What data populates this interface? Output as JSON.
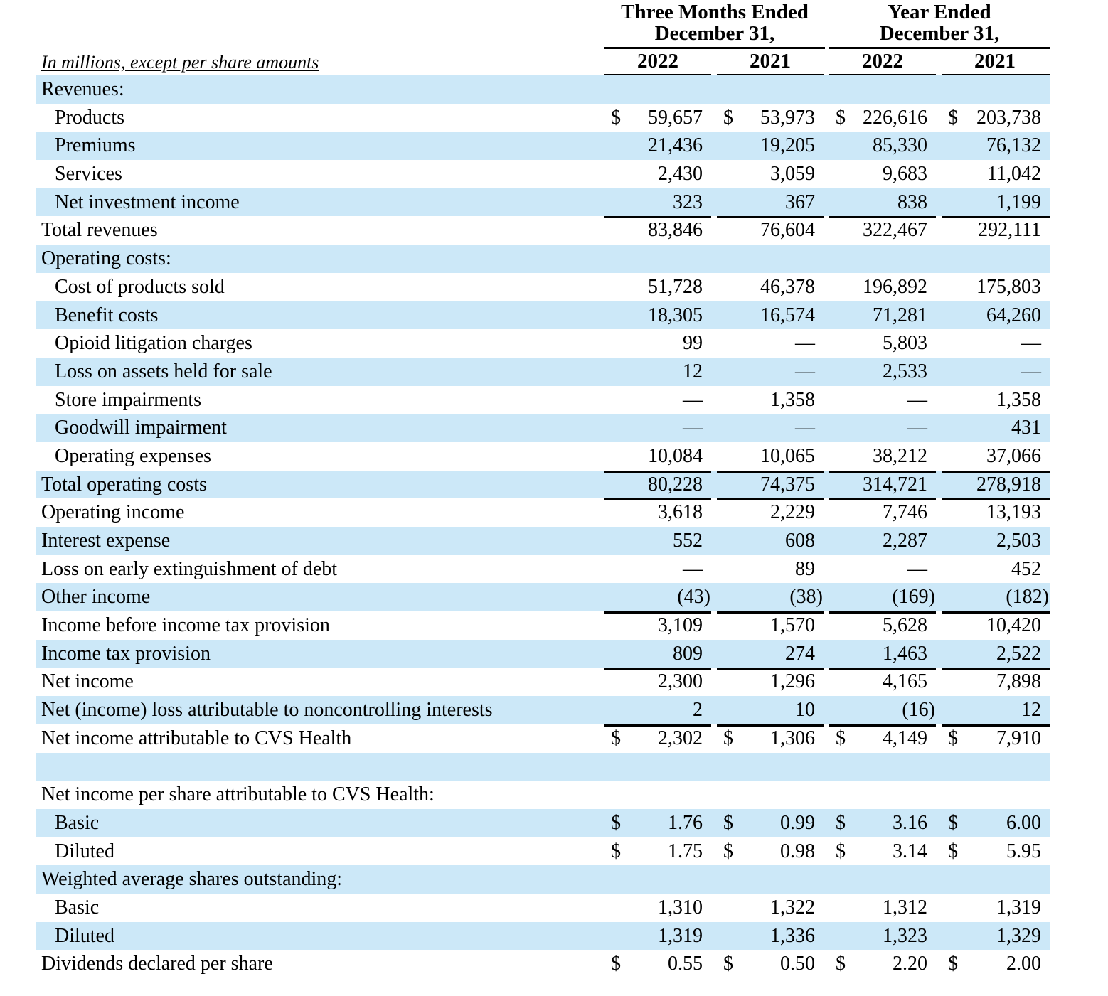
{
  "header": {
    "caption": "In millions, except per share amounts",
    "groups": [
      {
        "line1": "Three Months Ended",
        "line2": "December 31,"
      },
      {
        "line1": "Year Ended",
        "line2": "December 31,"
      }
    ],
    "years": [
      "2022",
      "2021",
      "2022",
      "2021"
    ]
  },
  "rows": [
    {
      "label": "Revenues:",
      "indent": 0,
      "shade": true,
      "cells": [
        "",
        "",
        "",
        ""
      ]
    },
    {
      "label": "Products",
      "indent": 1,
      "shade": false,
      "dollar": true,
      "cells": [
        "59,657",
        "53,973",
        "226,616",
        "203,738"
      ]
    },
    {
      "label": "Premiums",
      "indent": 1,
      "shade": true,
      "cells": [
        "21,436",
        "19,205",
        "85,330",
        "76,132"
      ]
    },
    {
      "label": "Services",
      "indent": 1,
      "shade": false,
      "cells": [
        "2,430",
        "3,059",
        "9,683",
        "11,042"
      ]
    },
    {
      "label": "Net investment income",
      "indent": 1,
      "shade": true,
      "cells": [
        "323",
        "367",
        "838",
        "1,199"
      ]
    },
    {
      "label": "Total revenues",
      "indent": 0,
      "shade": false,
      "topBorder": true,
      "cells": [
        "83,846",
        "76,604",
        "322,467",
        "292,111"
      ]
    },
    {
      "label": "Operating costs:",
      "indent": 0,
      "shade": true,
      "cells": [
        "",
        "",
        "",
        ""
      ]
    },
    {
      "label": "Cost of products sold",
      "indent": 1,
      "shade": false,
      "cells": [
        "51,728",
        "46,378",
        "196,892",
        "175,803"
      ]
    },
    {
      "label": "Benefit costs",
      "indent": 1,
      "shade": true,
      "cells": [
        "18,305",
        "16,574",
        "71,281",
        "64,260"
      ]
    },
    {
      "label": "Opioid litigation charges",
      "indent": 1,
      "shade": false,
      "cells": [
        "99",
        "—",
        "5,803",
        "—"
      ]
    },
    {
      "label": "Loss on assets held for sale",
      "indent": 1,
      "shade": true,
      "cells": [
        "12",
        "—",
        "2,533",
        "—"
      ]
    },
    {
      "label": "Store impairments",
      "indent": 1,
      "shade": false,
      "cells": [
        "—",
        "1,358",
        "—",
        "1,358"
      ]
    },
    {
      "label": "Goodwill impairment",
      "indent": 1,
      "shade": true,
      "cells": [
        "—",
        "—",
        "—",
        "431"
      ]
    },
    {
      "label": "Operating expenses",
      "indent": 1,
      "shade": false,
      "cells": [
        "10,084",
        "10,065",
        "38,212",
        "37,066"
      ]
    },
    {
      "label": "Total operating costs",
      "indent": 0,
      "shade": true,
      "topBorder": true,
      "cells": [
        "80,228",
        "74,375",
        "314,721",
        "278,918"
      ]
    },
    {
      "label": "Operating income",
      "indent": 0,
      "shade": false,
      "topBorder": true,
      "cells": [
        "3,618",
        "2,229",
        "7,746",
        "13,193"
      ]
    },
    {
      "label": "Interest expense",
      "indent": 0,
      "shade": true,
      "cells": [
        "552",
        "608",
        "2,287",
        "2,503"
      ]
    },
    {
      "label": "Loss on early extinguishment of debt",
      "indent": 0,
      "shade": false,
      "cells": [
        "—",
        "89",
        "—",
        "452"
      ]
    },
    {
      "label": "Other income",
      "indent": 0,
      "shade": true,
      "cells": [
        "(43)",
        "(38)",
        "(169)",
        "(182)"
      ]
    },
    {
      "label": "Income before income tax provision",
      "indent": 0,
      "shade": false,
      "topBorder": true,
      "cells": [
        "3,109",
        "1,570",
        "5,628",
        "10,420"
      ]
    },
    {
      "label": "Income tax provision",
      "indent": 0,
      "shade": true,
      "cells": [
        "809",
        "274",
        "1,463",
        "2,522"
      ]
    },
    {
      "label": "Net income",
      "indent": 0,
      "shade": false,
      "topBorder": true,
      "cells": [
        "2,300",
        "1,296",
        "4,165",
        "7,898"
      ]
    },
    {
      "label": "Net (income) loss attributable to noncontrolling interests",
      "indent": 0,
      "shade": true,
      "cells": [
        "2",
        "10",
        "(16)",
        "12"
      ]
    },
    {
      "label": "Net income attributable to CVS Health",
      "indent": 0,
      "shade": false,
      "dollar": true,
      "topBorder": true,
      "doubleBottom": true,
      "cells": [
        "2,302",
        "1,306",
        "4,149",
        "7,910"
      ]
    },
    {
      "label": "",
      "indent": 0,
      "shade": true,
      "cells": [
        "",
        "",
        "",
        ""
      ]
    },
    {
      "label": "Net income per share attributable to CVS Health:",
      "indent": 0,
      "shade": false,
      "cells": [
        "",
        "",
        "",
        ""
      ]
    },
    {
      "label": "Basic",
      "indent": 1,
      "shade": true,
      "dollar": true,
      "cells": [
        "1.76",
        "0.99",
        "3.16",
        "6.00"
      ]
    },
    {
      "label": "Diluted",
      "indent": 1,
      "shade": false,
      "dollar": true,
      "cells": [
        "1.75",
        "0.98",
        "3.14",
        "5.95"
      ]
    },
    {
      "label": "Weighted average shares outstanding:",
      "indent": 0,
      "shade": true,
      "cells": [
        "",
        "",
        "",
        ""
      ]
    },
    {
      "label": "Basic",
      "indent": 1,
      "shade": false,
      "cells": [
        "1,310",
        "1,322",
        "1,312",
        "1,319"
      ]
    },
    {
      "label": "Diluted",
      "indent": 1,
      "shade": true,
      "cells": [
        "1,319",
        "1,336",
        "1,323",
        "1,329"
      ]
    },
    {
      "label": "Dividends declared per share",
      "indent": 0,
      "shade": false,
      "dollar": true,
      "cells": [
        "0.55",
        "0.50",
        "2.20",
        "2.00"
      ]
    }
  ],
  "currency_symbol": "$"
}
